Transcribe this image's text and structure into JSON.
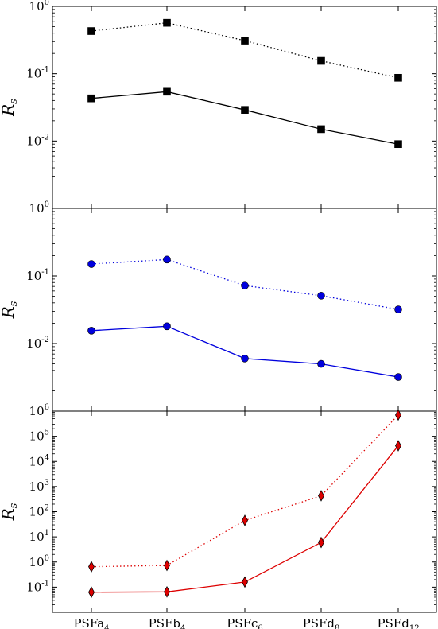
{
  "chart_data": [
    {
      "type": "line",
      "panel": "top",
      "yscale": "log",
      "ylim": [
        0.001,
        1
      ],
      "ylabel": "R",
      "ylabel_sub": "s",
      "color": "#000000",
      "marker": "square",
      "yticks": [
        {
          "base": "10",
          "exp": "0",
          "value": 1
        },
        {
          "base": "10",
          "exp": "-1",
          "value": 0.1
        },
        {
          "base": "10",
          "exp": "-2",
          "value": 0.01
        }
      ],
      "series": [
        {
          "style": "dotted",
          "values": [
            0.43,
            0.57,
            0.31,
            0.155,
            0.087
          ]
        },
        {
          "style": "solid",
          "values": [
            0.043,
            0.054,
            0.029,
            0.015,
            0.009
          ]
        }
      ]
    },
    {
      "type": "line",
      "panel": "middle",
      "yscale": "log",
      "ylim": [
        0.001,
        1
      ],
      "ylabel": "R",
      "ylabel_sub": "s",
      "color": "#0000dd",
      "marker": "circle",
      "yticks": [
        {
          "base": "10",
          "exp": "0",
          "value": 1
        },
        {
          "base": "10",
          "exp": "-1",
          "value": 0.1
        },
        {
          "base": "10",
          "exp": "-2",
          "value": 0.01
        }
      ],
      "series": [
        {
          "style": "dotted",
          "values": [
            0.15,
            0.175,
            0.072,
            0.051,
            0.032
          ]
        },
        {
          "style": "solid",
          "values": [
            0.0155,
            0.018,
            0.006,
            0.005,
            0.0032
          ]
        }
      ]
    },
    {
      "type": "line",
      "panel": "bottom",
      "yscale": "log",
      "ylim": [
        0.01,
        1000000
      ],
      "ylabel": "R",
      "ylabel_sub": "s",
      "color": "#dd0000",
      "marker": "diamond",
      "yticks": [
        {
          "base": "10",
          "exp": "6",
          "value": 1000000
        },
        {
          "base": "10",
          "exp": "5",
          "value": 100000
        },
        {
          "base": "10",
          "exp": "4",
          "value": 10000
        },
        {
          "base": "10",
          "exp": "3",
          "value": 1000
        },
        {
          "base": "10",
          "exp": "2",
          "value": 100
        },
        {
          "base": "10",
          "exp": "1",
          "value": 10
        },
        {
          "base": "10",
          "exp": "0",
          "value": 1
        },
        {
          "base": "10",
          "exp": "-1",
          "value": 0.1
        }
      ],
      "series": [
        {
          "style": "dotted",
          "values": [
            0.65,
            0.73,
            45,
            430,
            700000
          ]
        },
        {
          "style": "solid",
          "values": [
            0.063,
            0.065,
            0.16,
            6,
            42000
          ]
        }
      ]
    }
  ],
  "categories": [
    {
      "base": "PSFa",
      "sub": "4"
    },
    {
      "base": "PSFb",
      "sub": "4"
    },
    {
      "base": "PSFc",
      "sub": "6"
    },
    {
      "base": "PSFd",
      "sub": "8"
    },
    {
      "base": "PSFd",
      "sub": "12"
    }
  ]
}
